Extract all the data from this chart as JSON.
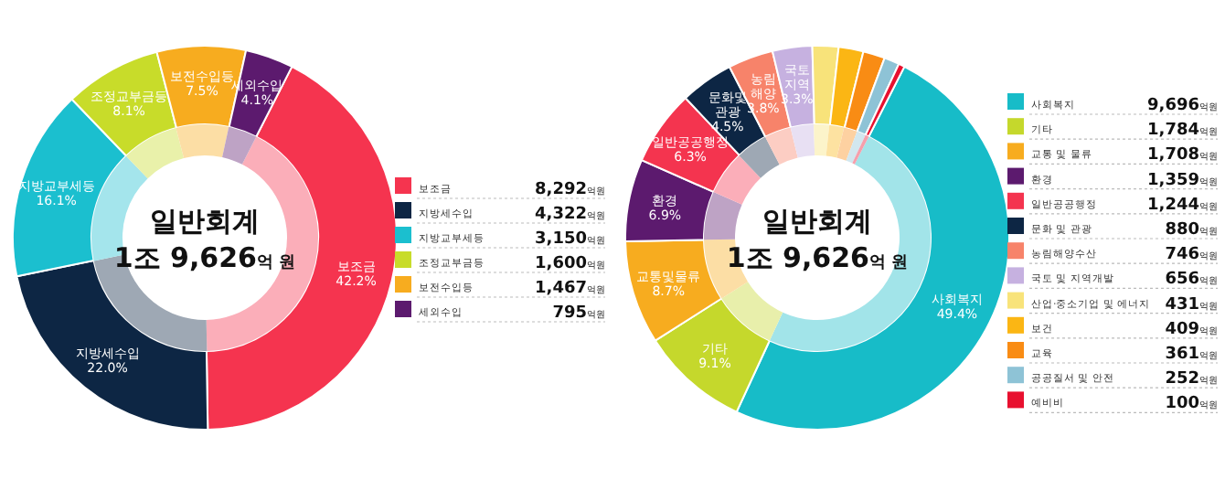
{
  "chart_data": [
    {
      "type": "donut",
      "title": "일반회계",
      "subtitle": "1조 9,626억 원",
      "legend": "right",
      "categories": [
        "보조금",
        "지방세수입",
        "지방교부세등",
        "조정교부금등",
        "보전수입등",
        "세외수입"
      ],
      "series": [
        {
          "values": [
            8292,
            4322,
            3150,
            1600,
            1467,
            795
          ],
          "colors": [
            "#f5344f",
            "#0d2644",
            "#1bbfcf",
            "#c8dc2a",
            "#f7ac1f",
            "#5c1a6e"
          ],
          "value_labels": [
            "8,292억원",
            "4,322억원",
            "3,150억원",
            "1,600억원",
            "1,467억원",
            "795억원"
          ]
        },
        {
          "values": [
            42.2,
            22.0,
            16.1,
            8.1,
            7.5,
            4.1
          ],
          "colors": [
            "#fbaeb9",
            "#9ea8b4",
            "#a4e5ec",
            "#e9f1aa",
            "#fcdea5",
            "#bea3c5"
          ]
        }
      ],
      "annotations": [
        "보조금\n42.2%",
        "지방세수입\n22.0%",
        "지방교부세등\n16.1%",
        "조정교부금등\n8.1%",
        "보전수입등\n7.5%",
        "세외수입\n4.1%"
      ]
    },
    {
      "type": "donut",
      "title": "일반회계",
      "subtitle": "1조 9,626억 원",
      "legend": "right",
      "categories": [
        "사회복지",
        "기타",
        "교통 및 물류",
        "환경",
        "일반공공행정",
        "문화 및 관광",
        "농림해양수산",
        "국토 및 지역개발",
        "산업·중소기업 및 에너지",
        "보건",
        "교육",
        "공공질서 및 안전",
        "예비비"
      ],
      "series": [
        {
          "values": [
            9696,
            1784,
            1708,
            1359,
            1244,
            880,
            746,
            656,
            431,
            409,
            361,
            252,
            100
          ],
          "colors": [
            "#17bcc8",
            "#c5d82c",
            "#f7ac1f",
            "#5c1a6e",
            "#f4344f",
            "#0d2644",
            "#f7836a",
            "#c6b1e0",
            "#f8e37a",
            "#fbb614",
            "#f98c14",
            "#8ec3d6",
            "#e8102f"
          ],
          "value_labels": [
            "9,696억원",
            "1,784억원",
            "1,708억원",
            "1,359억원",
            "1,244억원",
            "880억원",
            "746억원",
            "656억원",
            "431억원",
            "409억원",
            "361억원",
            "252억원",
            "100억원"
          ]
        },
        {
          "values": [
            49.4,
            9.1,
            8.7,
            6.9,
            6.3,
            4.5,
            3.8,
            3.3,
            2.2,
            2.1,
            1.9,
            1.3,
            0.5
          ],
          "colors": [
            "#a2e4e9",
            "#e8efab",
            "#fcdea5",
            "#bea3c5",
            "#fbaeb9",
            "#9ea8b4",
            "#fccdc3",
            "#e8e0f3",
            "#fcf4ca",
            "#fde2a1",
            "#fdd1a1",
            "#d2e7ef",
            "#f69fac"
          ]
        }
      ],
      "annotations": [
        "사회복지\n49.4%",
        "기타\n9.1%",
        "교통및물류\n8.7%",
        "환경\n6.9%",
        "일반공공행정\n6.3%",
        "문화및\n관광\n4.5%",
        "농림\n해양\n3.8%",
        "국토\n지역\n3.3%"
      ]
    }
  ]
}
